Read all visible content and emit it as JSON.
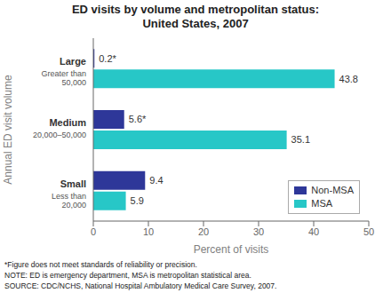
{
  "chart_data": {
    "type": "bar",
    "orientation": "horizontal",
    "title": "ED visits by volume and metropolitan status:\nUnited States, 2007",
    "categories": [
      "Large",
      "Medium",
      "Small"
    ],
    "category_sublabels": [
      "Greater than\n50,000",
      "20,000–50,000",
      "Less than\n20,000"
    ],
    "series": [
      {
        "name": "Non-MSA",
        "color": "#2e3799",
        "values": [
          0.2,
          5.6,
          9.4
        ],
        "value_labels": [
          "0.2*",
          "5.6*",
          "9.4"
        ]
      },
      {
        "name": "MSA",
        "color": "#27c7c7",
        "values": [
          43.8,
          35.1,
          5.9
        ],
        "value_labels": [
          "43.8",
          "35.1",
          "5.9"
        ]
      }
    ],
    "xlabel": "Percent of visits",
    "ylabel": "Annual ED visit volume",
    "xlim": [
      0,
      50
    ],
    "xticks": [
      0,
      10,
      20,
      30,
      40,
      50
    ],
    "data_labels": true,
    "legend": "lower right",
    "grid": false,
    "footnotes": [
      "*Figure does not meet standards of reliability or precision.",
      "NOTE: ED is emergency department, MSA is metropolitan statistical area.",
      "SOURCE: CDC/NCHS, National Hospital Ambulatory Medical Care Survey, 2007."
    ]
  }
}
